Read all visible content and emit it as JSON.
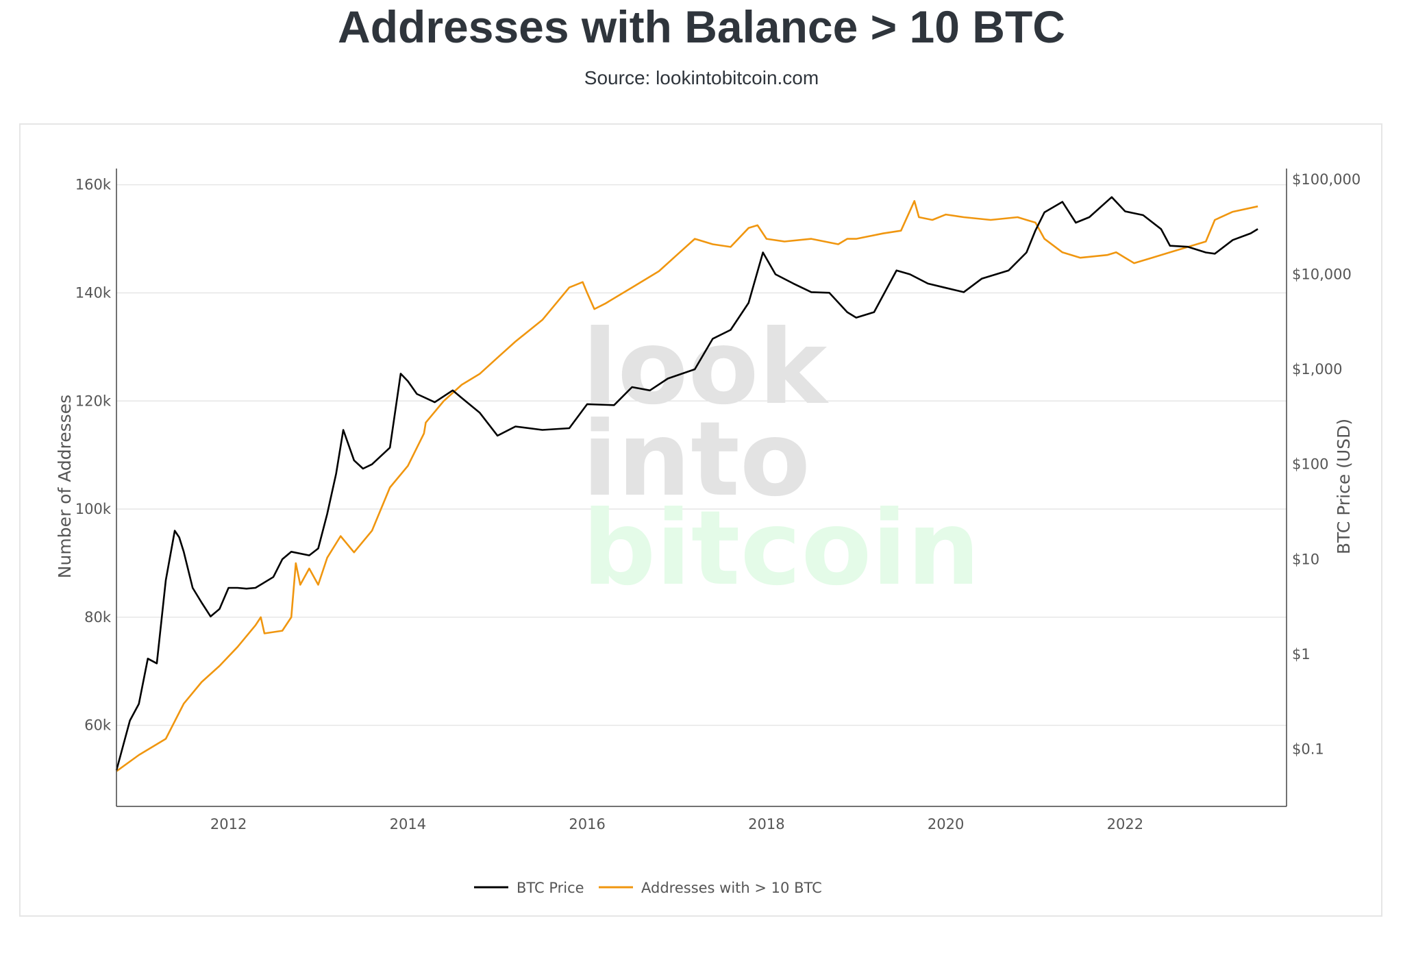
{
  "header": {
    "title": "Addresses with Balance > 10 BTC",
    "subtitle": "Source: lookintobitcoin.com"
  },
  "watermark": {
    "line1": "look",
    "line2": "into",
    "line3": "bitcoin"
  },
  "colors": {
    "price": "#000000",
    "addresses": "#f0960f",
    "grid": "#e6e6e6",
    "watermark_gray": "#e3e3e3",
    "watermark_green": "#e4fbe8"
  },
  "chart_data": {
    "type": "line",
    "title": "Addresses with Balance > 10 BTC",
    "subtitle": "Source: lookintobitcoin.com",
    "x_axis": {
      "ticks": [
        "2012",
        "2014",
        "2016",
        "2018",
        "2020",
        "2022"
      ],
      "range": [
        2010.75,
        2023.8
      ]
    },
    "y_left": {
      "label": "Number of Addresses",
      "ticks": [
        "60k",
        "80k",
        "100k",
        "120k",
        "140k",
        "160k"
      ],
      "tick_values": [
        60000,
        80000,
        100000,
        120000,
        140000,
        160000
      ],
      "range": [
        45000,
        163000
      ]
    },
    "y_right": {
      "label": "BTC Price (USD)",
      "scale": "log",
      "ticks": [
        "$0.1",
        "$1",
        "$10",
        "$100",
        "$1,000",
        "$10,000",
        "$100,000"
      ],
      "tick_values": [
        0.1,
        1,
        10,
        100,
        1000,
        10000,
        100000
      ],
      "range": [
        0.025,
        130000
      ]
    },
    "grid": true,
    "legend_position": "bottom-center",
    "series": [
      {
        "name": "BTC Price",
        "axis": "right",
        "x": [
          2010.75,
          2010.9,
          2011.0,
          2011.1,
          2011.2,
          2011.3,
          2011.4,
          2011.45,
          2011.5,
          2011.6,
          2011.7,
          2011.8,
          2011.9,
          2012.0,
          2012.1,
          2012.2,
          2012.3,
          2012.5,
          2012.6,
          2012.7,
          2012.9,
          2013.0,
          2013.1,
          2013.2,
          2013.28,
          2013.4,
          2013.5,
          2013.6,
          2013.8,
          2013.92,
          2014.0,
          2014.1,
          2014.3,
          2014.5,
          2014.6,
          2014.8,
          2015.0,
          2015.2,
          2015.5,
          2015.8,
          2016.0,
          2016.3,
          2016.5,
          2016.7,
          2016.9,
          2017.2,
          2017.4,
          2017.6,
          2017.8,
          2017.96,
          2018.1,
          2018.3,
          2018.5,
          2018.7,
          2018.9,
          2019.0,
          2019.2,
          2019.45,
          2019.6,
          2019.8,
          2020.0,
          2020.2,
          2020.4,
          2020.7,
          2020.9,
          2021.0,
          2021.1,
          2021.3,
          2021.45,
          2021.6,
          2021.85,
          2022.0,
          2022.2,
          2022.4,
          2022.5,
          2022.7,
          2022.9,
          2023.0,
          2023.2,
          2023.4,
          2023.48
        ],
        "values": [
          0.06,
          0.2,
          0.3,
          0.9,
          0.8,
          6,
          20,
          17,
          12,
          5,
          3.5,
          2.5,
          3,
          5,
          5,
          4.9,
          5,
          6.5,
          10,
          12,
          11,
          13,
          30,
          80,
          230,
          110,
          90,
          100,
          150,
          900,
          750,
          550,
          450,
          600,
          500,
          350,
          200,
          250,
          230,
          240,
          430,
          420,
          650,
          600,
          800,
          1000,
          2100,
          2600,
          5000,
          17000,
          10000,
          8000,
          6500,
          6400,
          4000,
          3500,
          4000,
          11000,
          10000,
          8000,
          7200,
          6500,
          9000,
          11000,
          17000,
          29000,
          45000,
          58000,
          35000,
          40000,
          65000,
          46000,
          42000,
          30000,
          20000,
          19500,
          17000,
          16500,
          23000,
          27000,
          30000
        ]
      },
      {
        "name": "Addresses with > 10 BTC",
        "axis": "left",
        "x": [
          2010.75,
          2011.0,
          2011.3,
          2011.5,
          2011.7,
          2011.9,
          2012.1,
          2012.3,
          2012.36,
          2012.4,
          2012.6,
          2012.7,
          2012.75,
          2012.8,
          2012.9,
          2013.0,
          2013.1,
          2013.25,
          2013.4,
          2013.6,
          2013.8,
          2014.0,
          2014.18,
          2014.2,
          2014.4,
          2014.6,
          2014.8,
          2015.0,
          2015.2,
          2015.5,
          2015.8,
          2015.95,
          2016.0,
          2016.08,
          2016.2,
          2016.5,
          2016.8,
          2017.0,
          2017.2,
          2017.4,
          2017.6,
          2017.8,
          2017.9,
          2018.0,
          2018.2,
          2018.5,
          2018.8,
          2018.9,
          2019.0,
          2019.3,
          2019.5,
          2019.65,
          2019.7,
          2019.85,
          2020.0,
          2020.2,
          2020.5,
          2020.8,
          2020.9,
          2021.0,
          2021.1,
          2021.3,
          2021.5,
          2021.8,
          2021.9,
          2022.0,
          2022.1,
          2022.3,
          2022.5,
          2022.7,
          2022.9,
          2023.0,
          2023.2,
          2023.48
        ],
        "values": [
          51500,
          54500,
          57500,
          64000,
          68000,
          71000,
          74500,
          78500,
          80000,
          77000,
          77500,
          80000,
          90000,
          86000,
          89000,
          86000,
          91000,
          95000,
          92000,
          96000,
          104000,
          108000,
          114000,
          116000,
          120000,
          123000,
          125000,
          128000,
          131000,
          135000,
          141000,
          142000,
          140000,
          137000,
          138000,
          141000,
          144000,
          147000,
          150000,
          149000,
          148500,
          152000,
          152500,
          150000,
          149500,
          150000,
          149000,
          150000,
          150000,
          151000,
          151500,
          157000,
          154000,
          153500,
          154500,
          154000,
          153500,
          154000,
          153500,
          153000,
          150000,
          147500,
          146500,
          147000,
          147500,
          146500,
          145500,
          146500,
          147500,
          148500,
          149500,
          153500,
          155000,
          156000
        ]
      }
    ],
    "legend": [
      "BTC Price",
      "Addresses with > 10 BTC"
    ]
  }
}
